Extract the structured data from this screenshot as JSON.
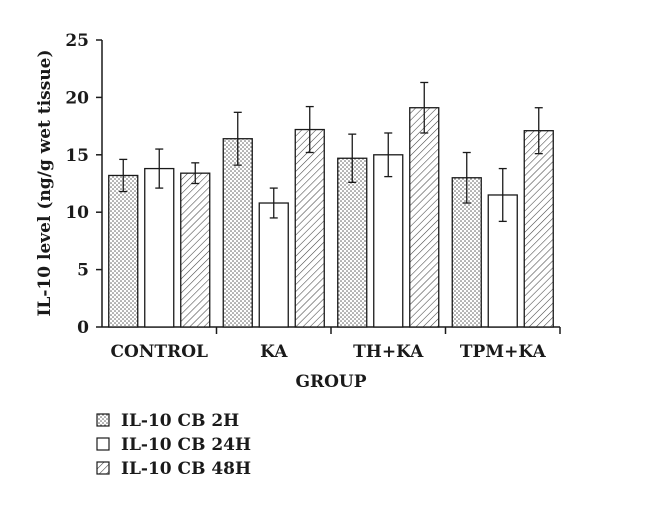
{
  "chart_data": {
    "type": "bar",
    "xlabel": "GROUP",
    "ylabel": "IL-10 level (ng/g wet tissue)",
    "ylim": [
      0,
      25
    ],
    "yticks": [
      0,
      5,
      10,
      15,
      20,
      25
    ],
    "categories": [
      "CONTROL",
      "KA",
      "TH+KA",
      "TPM+KA"
    ],
    "series": [
      {
        "name": "IL-10 CB 2H",
        "pattern": "dots",
        "values": [
          13.2,
          16.4,
          14.7,
          13.0
        ],
        "errors": [
          1.4,
          2.3,
          2.1,
          2.2
        ]
      },
      {
        "name": "IL-10 CB 24H",
        "pattern": "none",
        "values": [
          13.8,
          10.8,
          15.0,
          11.5
        ],
        "errors": [
          1.7,
          1.3,
          1.9,
          2.3
        ]
      },
      {
        "name": "IL-10 CB 48H",
        "pattern": "hatch",
        "values": [
          13.4,
          17.2,
          19.1,
          17.1
        ],
        "errors": [
          0.9,
          2.0,
          2.2,
          2.0
        ]
      }
    ],
    "grid": false,
    "legend_position": "bottom-left",
    "colors": {
      "fill": "#ffffff",
      "stroke": "#1a1a1a",
      "pattern": "#444444"
    }
  }
}
